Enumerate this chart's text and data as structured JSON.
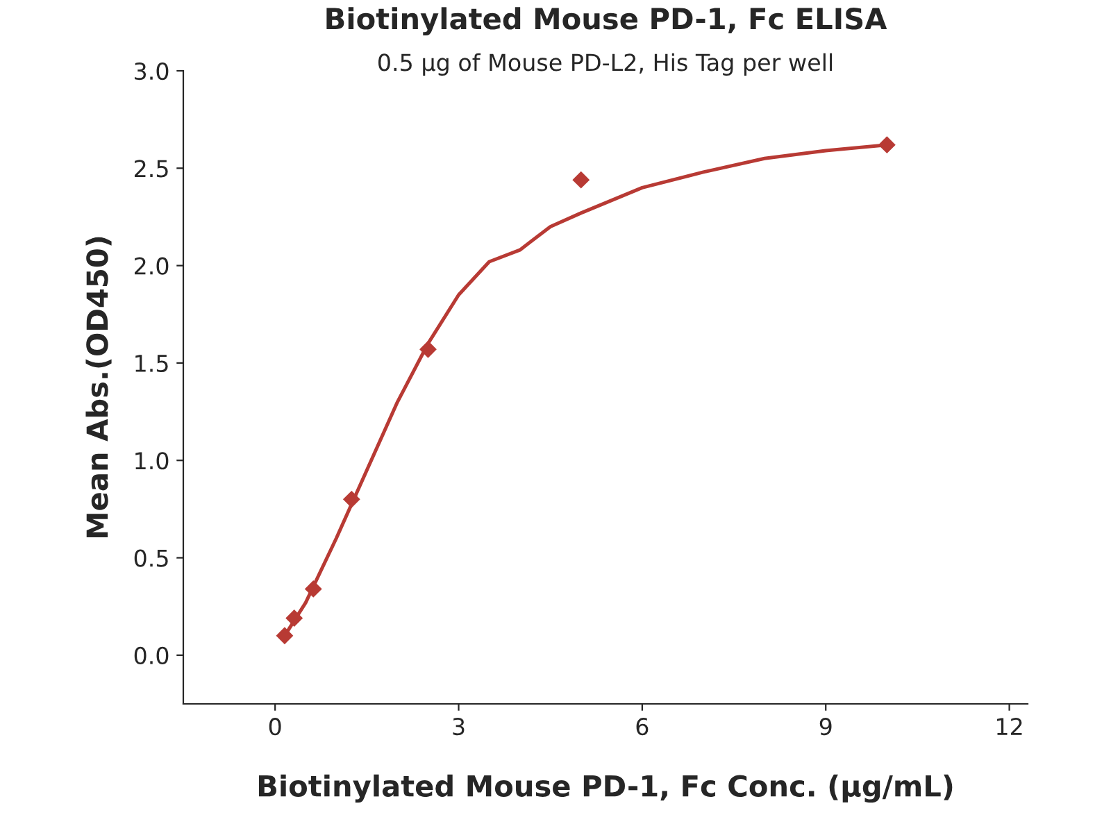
{
  "chart_data": {
    "type": "scatter",
    "title": "Biotinylated Mouse PD-1, Fc ELISA",
    "subtitle": "0.5 μg of Mouse PD-L2, His Tag per well",
    "xlabel": "Biotinylated Mouse PD-1, Fc Conc. (μg/mL)",
    "ylabel": "Mean Abs.(OD450)",
    "series": [
      {
        "type": "scatter",
        "marker": "diamond",
        "color": "#b83a34",
        "x": [
          0.156,
          0.3125,
          0.625,
          1.25,
          2.5,
          5,
          10
        ],
        "values": [
          0.1,
          0.19,
          0.34,
          0.8,
          1.57,
          2.44,
          2.62
        ]
      },
      {
        "type": "line",
        "marker": "none",
        "color": "#b83a34",
        "x": [
          0.156,
          0.5,
          1,
          1.5,
          2,
          2.5,
          3,
          3.5,
          4,
          4.5,
          5,
          6,
          7,
          8,
          9,
          10
        ],
        "values": [
          0.1,
          0.27,
          0.6,
          0.95,
          1.3,
          1.6,
          1.85,
          2.02,
          2.08,
          2.2,
          2.27,
          2.4,
          2.48,
          2.55,
          2.59,
          2.62
        ]
      }
    ],
    "xlim": [
      -1.5,
      12.3
    ],
    "ylim": [
      -0.25,
      3.0
    ],
    "xticks": [
      0,
      3,
      6,
      9,
      12
    ],
    "yticks": [
      {
        "value": 0,
        "label": "0.0"
      },
      {
        "value": 0.5,
        "label": "0.5"
      },
      {
        "value": 1,
        "label": "1.0"
      },
      {
        "value": 1.5,
        "label": "1.5"
      },
      {
        "value": 2,
        "label": "2.0"
      },
      {
        "value": 2.5,
        "label": "2.5"
      },
      {
        "value": 3,
        "label": "3.0"
      }
    ],
    "grid": false,
    "legend": false
  }
}
